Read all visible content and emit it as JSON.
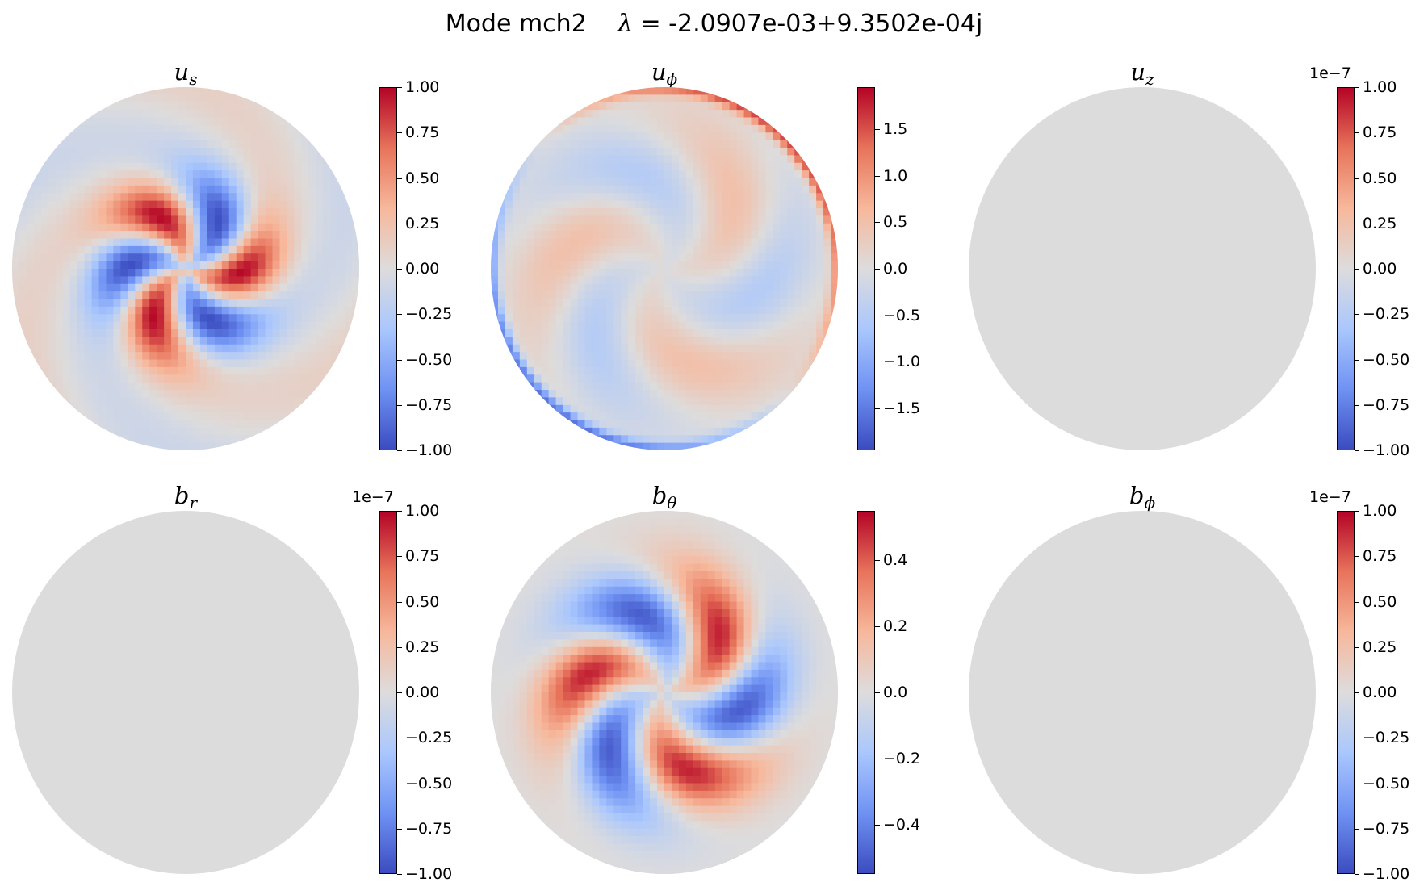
{
  "title": {
    "mode": "Mode mch2",
    "lambda_symbol": "λ",
    "lambda_value": " = -2.0907e-03+9.3502e-04j"
  },
  "colors": {
    "cmap": [
      "#3b4cc0",
      "#6f92f3",
      "#aac7fd",
      "#dddcdc",
      "#f7b89c",
      "#e7745b",
      "#b40426"
    ],
    "neutral": "#dcdcdc"
  },
  "chart_data": [
    {
      "type": "heatmap",
      "field": "u",
      "subscript": "s",
      "colorbar_range": [
        -1.0,
        1.0
      ],
      "exponent": "",
      "ticks": [
        "1.00",
        "0.75",
        "0.50",
        "0.25",
        "0.00",
        "−0.25",
        "−0.50",
        "−0.75",
        "−1.00"
      ],
      "tick_values": [
        1.0,
        0.75,
        0.5,
        0.25,
        0.0,
        -0.25,
        -0.5,
        -0.75,
        -1.0
      ],
      "pattern": "spiral-m3",
      "amplitude": 1.0
    },
    {
      "type": "heatmap",
      "field": "u",
      "subscript": "ϕ",
      "colorbar_range": [
        -1.95,
        1.95
      ],
      "exponent": "",
      "ticks": [
        "1.5",
        "1.0",
        "0.5",
        "0.0",
        "−0.5",
        "−1.0",
        "−1.5"
      ],
      "tick_values": [
        1.5,
        1.0,
        0.5,
        0.0,
        -0.5,
        -1.0,
        -1.5
      ],
      "pattern": "spiral-m3-rim",
      "amplitude": 1.95
    },
    {
      "type": "heatmap",
      "field": "u",
      "subscript": "z",
      "colorbar_range": [
        -1.0,
        1.0
      ],
      "exponent": "1e−7",
      "ticks": [
        "1.00",
        "0.75",
        "0.50",
        "0.25",
        "0.00",
        "−0.25",
        "−0.50",
        "−0.75",
        "−1.00"
      ],
      "tick_values": [
        1.0,
        0.75,
        0.5,
        0.25,
        0.0,
        -0.25,
        -0.5,
        -0.75,
        -1.0
      ],
      "pattern": "uniform",
      "amplitude": 0.0
    },
    {
      "type": "heatmap",
      "field": "b",
      "subscript": "r",
      "colorbar_range": [
        -1.0,
        1.0
      ],
      "exponent": "1e−7",
      "ticks": [
        "1.00",
        "0.75",
        "0.50",
        "0.25",
        "0.00",
        "−0.25",
        "−0.50",
        "−0.75",
        "−1.00"
      ],
      "tick_values": [
        1.0,
        0.75,
        0.5,
        0.25,
        0.0,
        -0.25,
        -0.5,
        -0.75,
        -1.0
      ],
      "pattern": "uniform",
      "amplitude": 0.0
    },
    {
      "type": "heatmap",
      "field": "b",
      "subscript": "θ",
      "colorbar_range": [
        -0.55,
        0.55
      ],
      "exponent": "",
      "ticks": [
        "0.4",
        "0.2",
        "0.0",
        "−0.2",
        "−0.4"
      ],
      "tick_values": [
        0.4,
        0.2,
        0.0,
        -0.2,
        -0.4
      ],
      "pattern": "spiral-m3-b",
      "amplitude": 0.55
    },
    {
      "type": "heatmap",
      "field": "b",
      "subscript": "ϕ",
      "colorbar_range": [
        -1.0,
        1.0
      ],
      "exponent": "1e−7",
      "ticks": [
        "1.00",
        "0.75",
        "0.50",
        "0.25",
        "0.00",
        "−0.25",
        "−0.50",
        "−0.75",
        "−1.00"
      ],
      "tick_values": [
        1.0,
        0.75,
        0.5,
        0.25,
        0.0,
        -0.25,
        -0.5,
        -0.75,
        -1.0
      ],
      "pattern": "uniform",
      "amplitude": 0.0
    }
  ]
}
